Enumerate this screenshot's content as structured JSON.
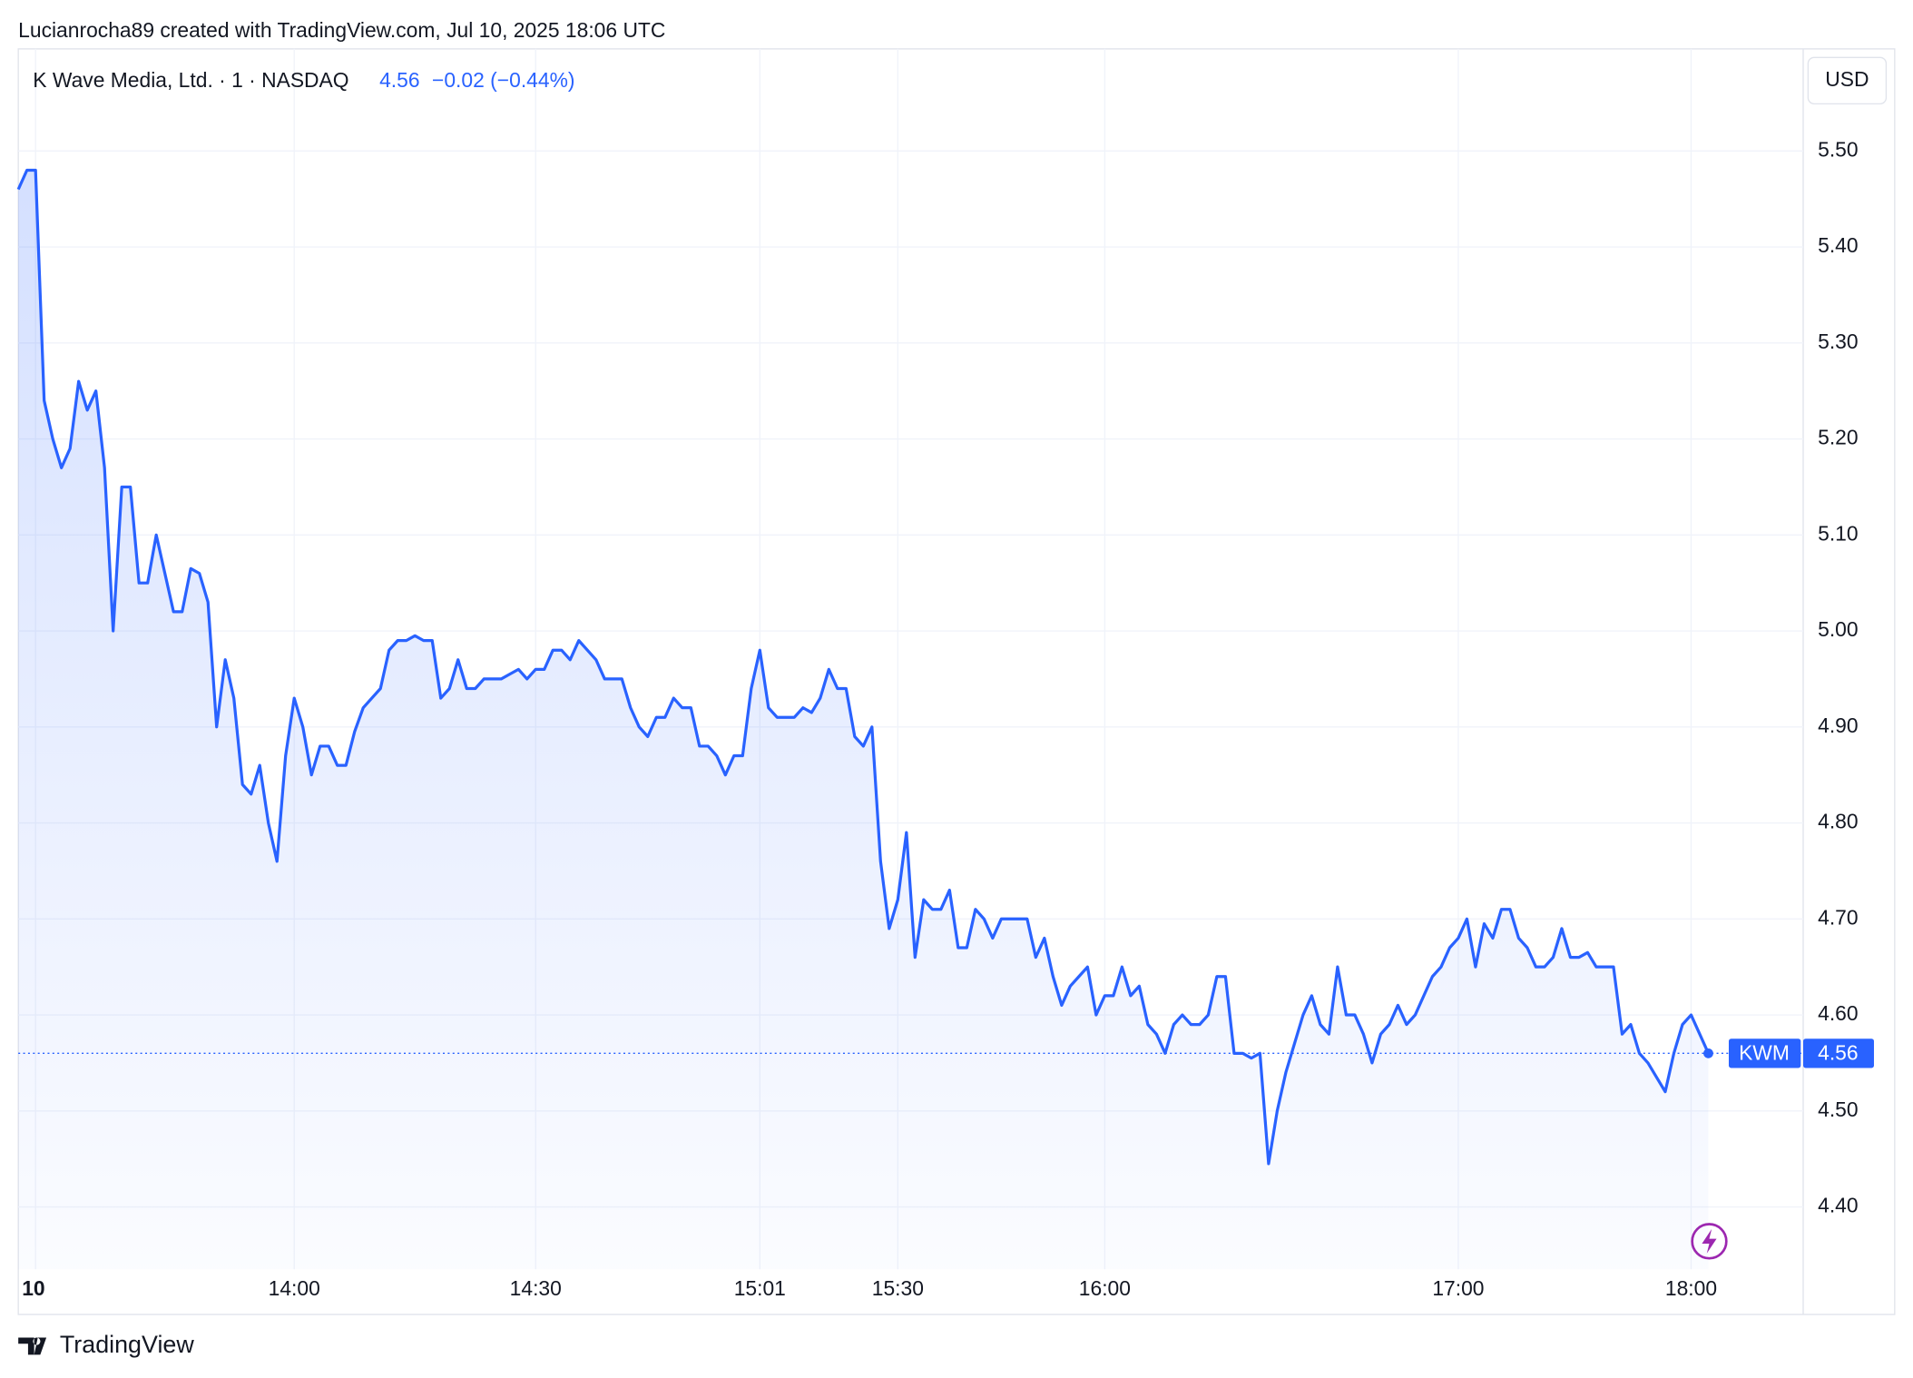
{
  "header": {
    "attribution": "Lucianrocha89 created with TradingView.com, Jul 10, 2025 18:06 UTC",
    "symbol": "K Wave Media, Ltd. · 1 · NASDAQ",
    "change_label": "−0.02 (−0.44%)",
    "currency": "USD"
  },
  "footer": {
    "brand": "TradingView"
  },
  "chart_data": {
    "type": "line",
    "series": [
      {
        "name": "KWM",
        "color": "#2962ff",
        "values": [
          5.46,
          5.48,
          5.48,
          5.24,
          5.2,
          5.17,
          5.19,
          5.26,
          5.23,
          5.25,
          5.17,
          5.0,
          5.15,
          5.15,
          5.05,
          5.05,
          5.1,
          5.06,
          5.02,
          5.02,
          5.065,
          5.06,
          5.03,
          4.9,
          4.97,
          4.93,
          4.84,
          4.83,
          4.86,
          4.8,
          4.76,
          4.87,
          4.93,
          4.9,
          4.85,
          4.88,
          4.88,
          4.86,
          4.86,
          4.895,
          4.92,
          4.93,
          4.94,
          4.98,
          4.99,
          4.99,
          4.995,
          4.99,
          4.99,
          4.93,
          4.94,
          4.97,
          4.94,
          4.94,
          4.95,
          4.95,
          4.95,
          4.955,
          4.96,
          4.95,
          4.96,
          4.96,
          4.98,
          4.98,
          4.97,
          4.99,
          4.98,
          4.97,
          4.95,
          4.95,
          4.95,
          4.92,
          4.9,
          4.89,
          4.91,
          4.91,
          4.93,
          4.92,
          4.92,
          4.88,
          4.88,
          4.87,
          4.85,
          4.87,
          4.87,
          4.94,
          4.98,
          4.92,
          4.91,
          4.91,
          4.91,
          4.92,
          4.915,
          4.93,
          4.96,
          4.94,
          4.94,
          4.89,
          4.88,
          4.9,
          4.76,
          4.69,
          4.72,
          4.79,
          4.66,
          4.72,
          4.71,
          4.71,
          4.73,
          4.67,
          4.67,
          4.71,
          4.7,
          4.68,
          4.7,
          4.7,
          4.7,
          4.7,
          4.66,
          4.68,
          4.64,
          4.61,
          4.63,
          4.64,
          4.65,
          4.6,
          4.62,
          4.62,
          4.65,
          4.62,
          4.63,
          4.59,
          4.58,
          4.56,
          4.59,
          4.6,
          4.59,
          4.59,
          4.6,
          4.64,
          4.64,
          4.56,
          4.56,
          4.555,
          4.56,
          4.445,
          4.5,
          4.54,
          4.57,
          4.6,
          4.62,
          4.59,
          4.58,
          4.65,
          4.6,
          4.6,
          4.58,
          4.55,
          4.58,
          4.59,
          4.61,
          4.59,
          4.6,
          4.62,
          4.64,
          4.65,
          4.67,
          4.68,
          4.7,
          4.65,
          4.695,
          4.68,
          4.71,
          4.71,
          4.68,
          4.67,
          4.65,
          4.65,
          4.66,
          4.69,
          4.66,
          4.66,
          4.665,
          4.65,
          4.65,
          4.65,
          4.58,
          4.59,
          4.56,
          4.55,
          4.535,
          4.52,
          4.56,
          4.59,
          4.6,
          4.58,
          4.56
        ]
      }
    ],
    "last_value": 4.56,
    "xlim": [
      0,
      207
    ],
    "xticks": [
      {
        "value": 2,
        "label": "10"
      },
      {
        "value": 32,
        "label": "14:00"
      },
      {
        "value": 60,
        "label": "14:30"
      },
      {
        "value": 86,
        "label": "15:01"
      },
      {
        "value": 102,
        "label": "15:30"
      },
      {
        "value": 126,
        "label": "16:00"
      },
      {
        "value": 167,
        "label": "17:00"
      },
      {
        "value": 194,
        "label": "18:00"
      }
    ],
    "ylim": [
      4.335,
      5.6
    ],
    "yticks": [
      {
        "value": 4.4,
        "label": "4.40"
      },
      {
        "value": 4.5,
        "label": "4.50"
      },
      {
        "value": 4.6,
        "label": "4.60"
      },
      {
        "value": 4.7,
        "label": "4.70"
      },
      {
        "value": 4.8,
        "label": "4.80"
      },
      {
        "value": 4.9,
        "label": "4.90"
      },
      {
        "value": 5.0,
        "label": "5.00"
      },
      {
        "value": 5.1,
        "label": "5.10"
      },
      {
        "value": 5.2,
        "label": "5.20"
      },
      {
        "value": 5.3,
        "label": "5.30"
      },
      {
        "value": 5.4,
        "label": "5.40"
      },
      {
        "value": 5.5,
        "label": "5.50"
      }
    ],
    "grid": true
  }
}
